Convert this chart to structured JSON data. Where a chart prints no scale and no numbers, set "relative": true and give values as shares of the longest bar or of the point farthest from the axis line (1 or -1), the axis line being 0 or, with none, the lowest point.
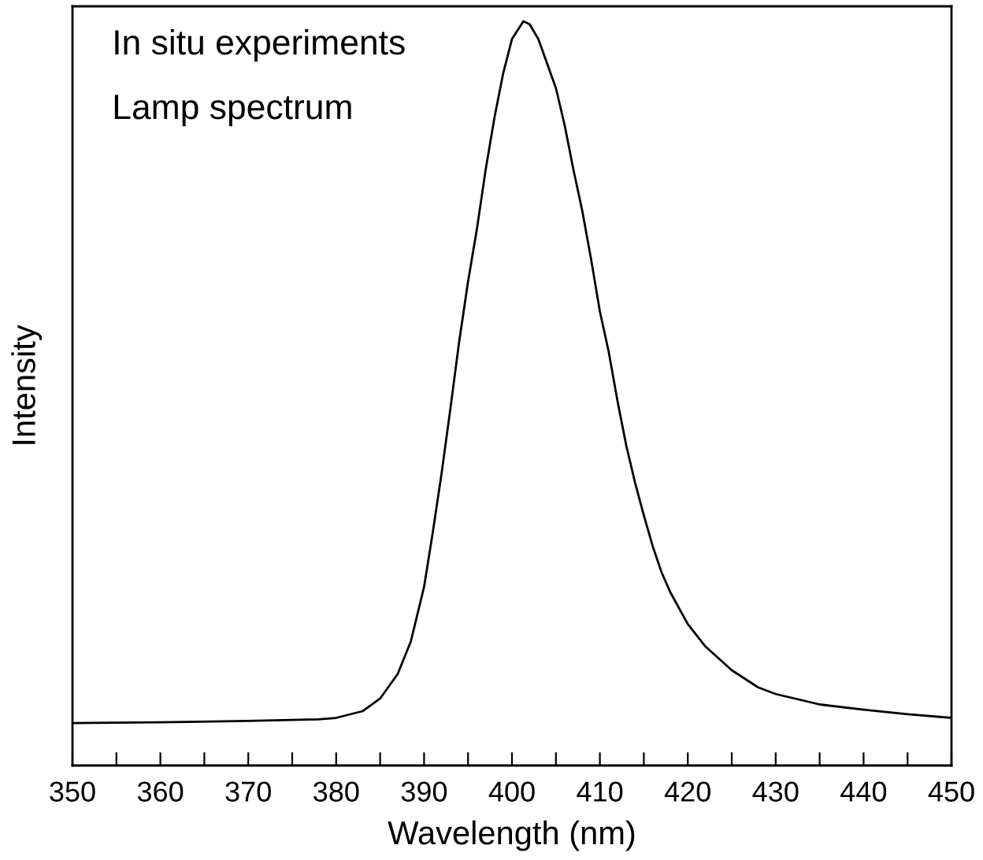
{
  "chart_data": {
    "type": "line",
    "xlabel": "Wavelength (nm)",
    "ylabel": "Intensity",
    "relative": true,
    "annotations": [
      "In situ experiments",
      "Lamp spectrum"
    ],
    "xlim": [
      350,
      450
    ],
    "xticks": [
      350,
      {
        "value": 355,
        "label": null
      },
      360,
      {
        "value": 365,
        "label": null
      },
      370,
      {
        "value": 375,
        "label": null
      },
      380,
      {
        "value": 385,
        "label": null
      },
      390,
      {
        "value": 395,
        "label": null
      },
      400,
      {
        "value": 405,
        "label": null
      },
      410,
      {
        "value": 415,
        "label": null
      },
      420,
      {
        "value": 425,
        "label": null
      },
      430,
      {
        "value": 435,
        "label": null
      },
      440,
      {
        "value": 445,
        "label": null
      },
      450
    ],
    "series": [
      {
        "color": "#000000",
        "x": [
          350,
          360,
          370,
          378,
          380,
          383,
          385,
          387,
          388.5,
          390,
          391,
          392,
          393,
          394,
          395,
          396,
          397,
          398,
          399,
          400,
          401.3,
          402,
          403,
          404,
          405,
          406,
          407,
          408,
          409,
          410,
          411,
          412,
          413,
          414,
          415,
          416,
          417,
          418,
          420,
          422,
          425,
          428,
          430,
          435,
          440,
          445,
          450
        ],
        "values": [
          0.057,
          0.058,
          0.06,
          0.062,
          0.064,
          0.073,
          0.09,
          0.123,
          0.167,
          0.24,
          0.314,
          0.393,
          0.48,
          0.57,
          0.65,
          0.72,
          0.8,
          0.87,
          0.93,
          0.976,
          1,
          0.996,
          0.976,
          0.943,
          0.91,
          0.86,
          0.8,
          0.745,
          0.68,
          0.61,
          0.556,
          0.49,
          0.43,
          0.38,
          0.336,
          0.295,
          0.26,
          0.233,
          0.19,
          0.16,
          0.128,
          0.105,
          0.096,
          0.082,
          0.075,
          0.069,
          0.064
        ]
      }
    ]
  }
}
